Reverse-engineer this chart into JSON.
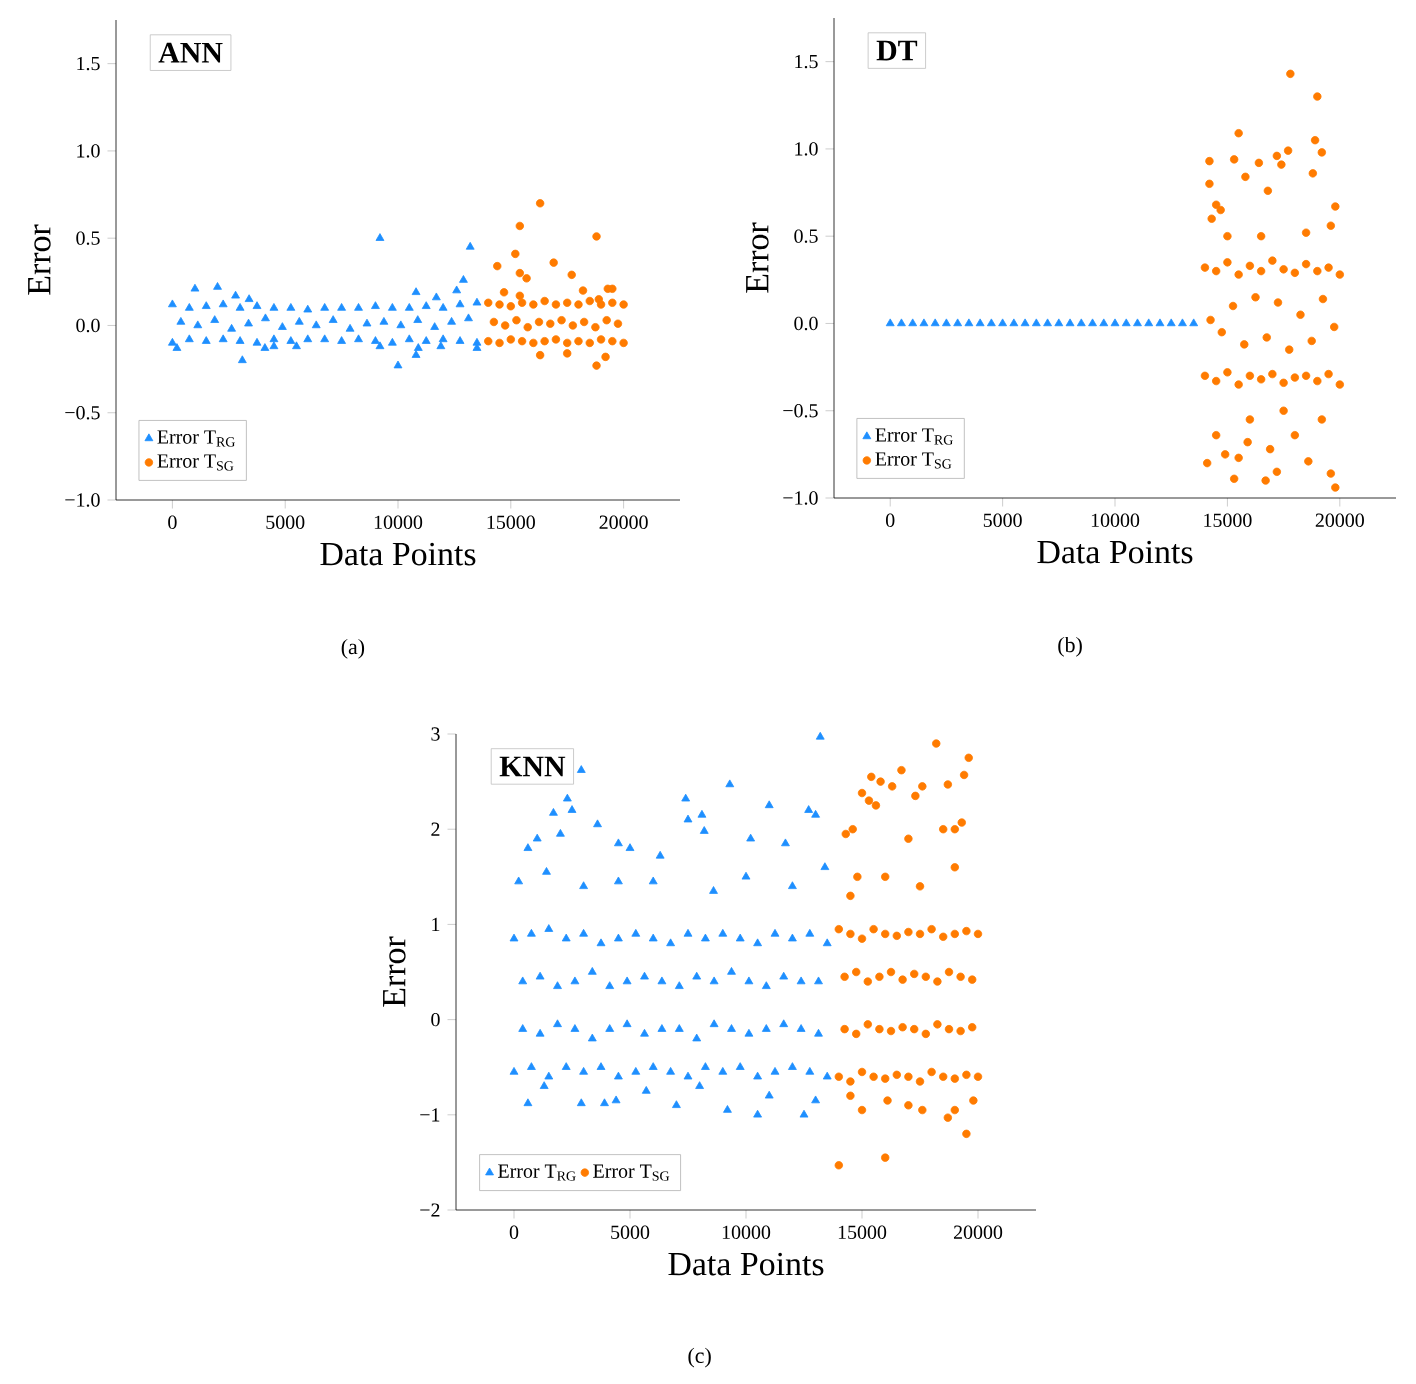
{
  "chart_data": [
    {
      "type": "scatter",
      "title": "ANN",
      "xlabel": "Data Points",
      "ylabel": "Error",
      "annotations": [
        "(a)"
      ],
      "xlim": [
        -2500,
        22500
      ],
      "ylim": [
        -1.0,
        1.75
      ],
      "xticks": [
        0,
        5000,
        10000,
        15000,
        20000
      ],
      "yticks": [
        {
          "value": -1.0,
          "label": "−1.0"
        },
        {
          "value": -0.5,
          "label": "−0.5"
        },
        {
          "value": 0,
          "label": "0.0"
        },
        {
          "value": 0.5,
          "label": "0.5"
        },
        {
          "value": 1.0,
          "label": "1.0"
        },
        {
          "value": 1.5,
          "label": "1.5"
        }
      ],
      "legend": "bottom left",
      "series": [
        {
          "name": "Error T$_{RG}$",
          "color": "#1e8fff",
          "marker": "triangle",
          "x": [
            0,
            750,
            1500,
            2250,
            3000,
            3750,
            4500,
            5250,
            6000,
            6750,
            7500,
            8250,
            9000,
            9750,
            10500,
            11250,
            12000,
            12750,
            13500,
            0,
            750,
            1500,
            2250,
            3000,
            3750,
            4500,
            5250,
            6000,
            6750,
            7500,
            8250,
            9000,
            9750,
            10500,
            11250,
            12000,
            12750,
            13500,
            375,
            1125,
            1875,
            2625,
            3375,
            4125,
            4875,
            5625,
            6375,
            7125,
            7875,
            8625,
            9375,
            10125,
            10875,
            11625,
            12375,
            13125,
            1000,
            2000,
            2800,
            3400,
            9200,
            13200,
            12900,
            12600,
            11700,
            10800,
            200,
            3100,
            4100,
            4500,
            5500,
            9200,
            10000,
            10800,
            10900,
            11900,
            13500
          ],
          "values": [
            0.12,
            0.1,
            0.11,
            0.12,
            0.1,
            0.11,
            0.1,
            0.1,
            0.09,
            0.1,
            0.1,
            0.1,
            0.11,
            0.1,
            0.1,
            0.11,
            0.1,
            0.12,
            0.13,
            -0.1,
            -0.08,
            -0.09,
            -0.08,
            -0.09,
            -0.1,
            -0.08,
            -0.09,
            -0.08,
            -0.08,
            -0.09,
            -0.08,
            -0.09,
            -0.1,
            -0.08,
            -0.09,
            -0.08,
            -0.09,
            -0.1,
            0.02,
            0,
            0.03,
            -0.02,
            0.01,
            0.04,
            -0.01,
            0.02,
            0,
            0.03,
            -0.02,
            0.01,
            0.02,
            0,
            0.03,
            -0.01,
            0.02,
            0.04,
            0.21,
            0.22,
            0.17,
            0.15,
            0.5,
            0.45,
            0.26,
            0.2,
            0.16,
            0.19,
            -0.13,
            -0.2,
            -0.13,
            -0.12,
            -0.12,
            -0.12,
            -0.23,
            -0.17,
            -0.13,
            -0.12,
            -0.13
          ]
        },
        {
          "name": "Error T$_{SG}$",
          "color": "#ff7b00",
          "marker": "circle",
          "x": [
            14000,
            14500,
            15000,
            15500,
            16000,
            16500,
            17000,
            17500,
            18000,
            18500,
            19000,
            19500,
            20000,
            14000,
            14500,
            15000,
            15500,
            16000,
            16500,
            17000,
            17500,
            18000,
            18500,
            19000,
            19500,
            20000,
            14250,
            14750,
            15250,
            15750,
            16250,
            16750,
            17250,
            17750,
            18250,
            18750,
            19250,
            19750,
            14400,
            14700,
            15200,
            15400,
            15400,
            15700,
            15400,
            16300,
            16900,
            17700,
            18200,
            18800,
            18900,
            19300,
            19500,
            16300,
            17500,
            18800,
            19200
          ],
          "values": [
            0.13,
            0.12,
            0.11,
            0.13,
            0.12,
            0.14,
            0.12,
            0.13,
            0.12,
            0.14,
            0.12,
            0.13,
            0.12,
            -0.09,
            -0.1,
            -0.08,
            -0.09,
            -0.1,
            -0.09,
            -0.08,
            -0.1,
            -0.09,
            -0.1,
            -0.08,
            -0.09,
            -0.1,
            0.02,
            0,
            0.03,
            -0.01,
            0.02,
            0.01,
            0.03,
            0,
            0.02,
            -0.01,
            0.03,
            0.01,
            0.34,
            0.19,
            0.41,
            0.57,
            0.3,
            0.27,
            0.17,
            0.7,
            0.36,
            0.29,
            0.2,
            0.51,
            0.15,
            0.21,
            0.21,
            -0.17,
            -0.16,
            -0.23,
            -0.18
          ]
        }
      ]
    },
    {
      "type": "scatter",
      "title": "DT",
      "xlabel": "Data Points",
      "ylabel": "Error",
      "annotations": [
        "(b)"
      ],
      "xlim": [
        -2500,
        22500
      ],
      "ylim": [
        -1.0,
        1.75
      ],
      "xticks": [
        0,
        5000,
        10000,
        15000,
        20000
      ],
      "yticks": [
        {
          "value": -1.0,
          "label": "−1.0"
        },
        {
          "value": -0.5,
          "label": "−0.5"
        },
        {
          "value": 0,
          "label": "0.0"
        },
        {
          "value": 0.5,
          "label": "0.5"
        },
        {
          "value": 1.0,
          "label": "1.0"
        },
        {
          "value": 1.5,
          "label": "1.5"
        }
      ],
      "legend": "bottom left",
      "series": [
        {
          "name": "Error T$_{RG}$",
          "color": "#1e8fff",
          "marker": "triangle",
          "x": [
            0,
            500,
            1000,
            1500,
            2000,
            2500,
            3000,
            3500,
            4000,
            4500,
            5000,
            5500,
            6000,
            6500,
            7000,
            7500,
            8000,
            8500,
            9000,
            9500,
            10000,
            10500,
            11000,
            11500,
            12000,
            12500,
            13000,
            13500
          ],
          "values": [
            0,
            0,
            0,
            0,
            0,
            0,
            0,
            0,
            0,
            0,
            0,
            0,
            0,
            0,
            0,
            0,
            0,
            0,
            0,
            0,
            0,
            0,
            0,
            0,
            0,
            0,
            0,
            0
          ]
        },
        {
          "name": "Error T$_{SG}$",
          "color": "#ff7b00",
          "marker": "circle",
          "x": [
            14000,
            14500,
            15000,
            15500,
            16000,
            16500,
            17000,
            17500,
            18000,
            18500,
            19000,
            19500,
            20000,
            14000,
            14500,
            15000,
            15500,
            16000,
            16500,
            17000,
            17500,
            18000,
            18500,
            19000,
            19500,
            20000,
            14250,
            14750,
            15250,
            15750,
            16250,
            16750,
            17250,
            17750,
            18250,
            18750,
            19250,
            19750,
            14200,
            14200,
            14300,
            14500,
            14700,
            15300,
            15500,
            15800,
            16400,
            16800,
            17200,
            17400,
            17700,
            17800,
            18800,
            18900,
            19000,
            19200,
            19800,
            19600,
            14100,
            14500,
            14900,
            15300,
            15500,
            15900,
            16700,
            16900,
            17200,
            18000,
            18600,
            19600,
            19800,
            19200,
            16000,
            17500,
            15000,
            16500,
            18500
          ],
          "values": [
            0.32,
            0.3,
            0.35,
            0.28,
            0.33,
            0.3,
            0.36,
            0.31,
            0.29,
            0.34,
            0.3,
            0.32,
            0.28,
            -0.3,
            -0.33,
            -0.28,
            -0.35,
            -0.3,
            -0.32,
            -0.29,
            -0.34,
            -0.31,
            -0.3,
            -0.33,
            -0.29,
            -0.35,
            0.02,
            -0.05,
            0.1,
            -0.12,
            0.15,
            -0.08,
            0.12,
            -0.15,
            0.05,
            -0.1,
            0.14,
            -0.02,
            0.93,
            0.8,
            0.6,
            0.68,
            0.65,
            0.94,
            1.09,
            0.84,
            0.92,
            0.76,
            0.96,
            0.91,
            0.99,
            1.43,
            0.86,
            1.05,
            1.3,
            0.98,
            0.67,
            0.56,
            -0.8,
            -0.64,
            -0.75,
            -0.89,
            -0.77,
            -0.68,
            -0.9,
            -0.72,
            -0.85,
            -0.64,
            -0.79,
            -0.86,
            -0.94,
            -0.55,
            -0.55,
            -0.5,
            0.5,
            0.5,
            0.52
          ]
        }
      ]
    },
    {
      "type": "scatter",
      "title": "KNN",
      "xlabel": "Data Points",
      "ylabel": "Error",
      "annotations": [
        "(c)"
      ],
      "xlim": [
        -2500,
        22500
      ],
      "ylim": [
        -2,
        3
      ],
      "xticks": [
        0,
        5000,
        10000,
        15000,
        20000
      ],
      "yticks": [
        {
          "value": -2,
          "label": "−2"
        },
        {
          "value": -1,
          "label": "−1"
        },
        0,
        1,
        2,
        3
      ],
      "legend": "bottom left",
      "series": [
        {
          "name": "Error T$_{RG}$",
          "color": "#1e8fff",
          "marker": "triangle",
          "x": [
            0,
            750,
            1500,
            2250,
            3000,
            3750,
            4500,
            5250,
            6000,
            6750,
            7500,
            8250,
            9000,
            9750,
            10500,
            11250,
            12000,
            12750,
            13500,
            0,
            750,
            1500,
            2250,
            3000,
            3750,
            4500,
            5250,
            6000,
            6750,
            7500,
            8250,
            9000,
            9750,
            10500,
            11250,
            12000,
            12750,
            13500,
            375,
            1125,
            1875,
            2625,
            3375,
            4125,
            4875,
            5625,
            6375,
            7125,
            7875,
            8625,
            9375,
            10125,
            10875,
            11625,
            12375,
            13125,
            375,
            1125,
            1875,
            2625,
            3375,
            4125,
            4875,
            5625,
            6375,
            7125,
            7875,
            8625,
            9375,
            10125,
            10875,
            11625,
            12375,
            13125,
            600,
            1000,
            1400,
            1700,
            2000,
            2300,
            2500,
            2900,
            3600,
            4500,
            5000,
            6300,
            7400,
            7500,
            8100,
            8200,
            9300,
            10200,
            11000,
            11700,
            12700,
            13000,
            13200,
            13400,
            600,
            2900,
            3900,
            4400,
            7000,
            9200,
            10500,
            12500,
            1300,
            5700,
            8000,
            11000,
            13000,
            200,
            3000,
            4500,
            6000,
            8600,
            10000,
            12000
          ],
          "values": [
            0.85,
            0.9,
            0.95,
            0.85,
            0.9,
            0.8,
            0.85,
            0.9,
            0.85,
            0.8,
            0.9,
            0.85,
            0.9,
            0.85,
            0.8,
            0.9,
            0.85,
            0.9,
            0.8,
            -0.55,
            -0.5,
            -0.6,
            -0.5,
            -0.55,
            -0.5,
            -0.6,
            -0.55,
            -0.5,
            -0.55,
            -0.6,
            -0.5,
            -0.55,
            -0.5,
            -0.6,
            -0.55,
            -0.5,
            -0.55,
            -0.6,
            0.4,
            0.45,
            0.35,
            0.4,
            0.5,
            0.35,
            0.4,
            0.45,
            0.4,
            0.35,
            0.45,
            0.4,
            0.5,
            0.4,
            0.35,
            0.45,
            0.4,
            0.4,
            -0.1,
            -0.15,
            -0.05,
            -0.1,
            -0.2,
            -0.1,
            -0.05,
            -0.15,
            -0.1,
            -0.1,
            -0.2,
            -0.05,
            -0.1,
            -0.15,
            -0.1,
            -0.05,
            -0.1,
            -0.15,
            1.8,
            1.9,
            1.55,
            2.17,
            1.95,
            2.32,
            2.2,
            2.62,
            2.05,
            1.85,
            1.8,
            1.72,
            2.32,
            2.1,
            2.15,
            1.98,
            2.47,
            1.9,
            2.25,
            1.85,
            2.2,
            2.15,
            2.97,
            1.6,
            -0.88,
            -0.88,
            -0.88,
            -0.85,
            -0.9,
            -0.95,
            -1.0,
            -1.0,
            -0.7,
            -0.75,
            -0.7,
            -0.8,
            -0.85,
            1.45,
            1.4,
            1.45,
            1.45,
            1.35,
            1.5,
            1.4
          ]
        },
        {
          "name": "Error T$_{SG}$",
          "color": "#ff7b00",
          "marker": "circle",
          "x": [
            14000,
            14500,
            15000,
            15500,
            16000,
            16500,
            17000,
            17500,
            18000,
            18500,
            19000,
            19500,
            20000,
            14000,
            14500,
            15000,
            15500,
            16000,
            16500,
            17000,
            17500,
            18000,
            18500,
            19000,
            19500,
            20000,
            14250,
            14750,
            15250,
            15750,
            16250,
            16750,
            17250,
            17750,
            18250,
            18750,
            19250,
            19750,
            14250,
            14750,
            15250,
            15750,
            16250,
            16750,
            17250,
            17750,
            18250,
            18750,
            19250,
            19750,
            14300,
            14600,
            14800,
            15000,
            15300,
            15400,
            15600,
            15800,
            16300,
            16700,
            17000,
            17300,
            17600,
            18200,
            18500,
            18700,
            19000,
            19400,
            19600,
            19300,
            14000,
            16000,
            14500,
            15000,
            16100,
            17000,
            17600,
            18700,
            19000,
            19500,
            19800,
            14500,
            16000,
            17500,
            19000
          ],
          "values": [
            0.95,
            0.9,
            0.85,
            0.95,
            0.9,
            0.88,
            0.92,
            0.9,
            0.95,
            0.87,
            0.9,
            0.93,
            0.9,
            -0.6,
            -0.65,
            -0.55,
            -0.6,
            -0.62,
            -0.58,
            -0.6,
            -0.65,
            -0.55,
            -0.6,
            -0.62,
            -0.58,
            -0.6,
            0.45,
            0.5,
            0.4,
            0.45,
            0.5,
            0.42,
            0.48,
            0.45,
            0.4,
            0.5,
            0.45,
            0.42,
            -0.1,
            -0.15,
            -0.05,
            -0.1,
            -0.12,
            -0.08,
            -0.1,
            -0.15,
            -0.05,
            -0.1,
            -0.12,
            -0.08,
            1.95,
            2.0,
            1.5,
            2.38,
            2.3,
            2.55,
            2.25,
            2.5,
            2.45,
            2.62,
            1.9,
            2.35,
            2.45,
            2.9,
            2.0,
            2.47,
            2.0,
            2.57,
            2.75,
            2.07,
            -1.53,
            -1.45,
            -0.8,
            -0.95,
            -0.85,
            -0.9,
            -0.95,
            -1.03,
            -0.95,
            -1.2,
            -0.85,
            1.3,
            1.5,
            1.4,
            1.6
          ]
        }
      ]
    }
  ]
}
